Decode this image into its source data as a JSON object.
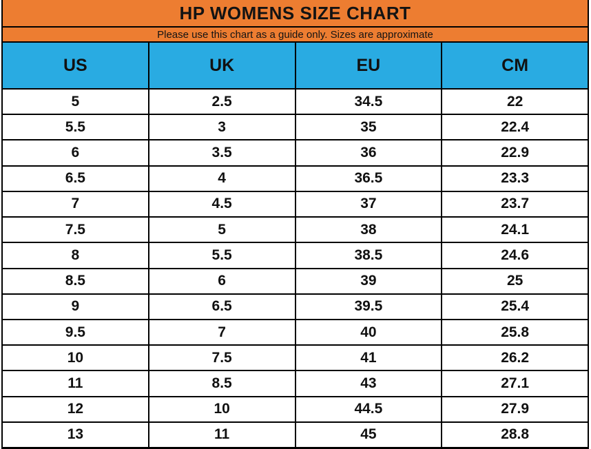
{
  "header": {
    "title": "HP WOMENS SIZE CHART",
    "subtitle": "Please use this chart as a guide only. Sizes are approximate"
  },
  "colors": {
    "title_band_orange": "#ED7D31",
    "column_header_blue": "#29ABE2",
    "grid_border": "#000000",
    "row_background": "#FFFFFF",
    "text": "#111111"
  },
  "chart_data": {
    "type": "table",
    "title": "HP WOMENS SIZE CHART",
    "subtitle": "Please use this chart as a guide only. Sizes are approximate",
    "columns": [
      "US",
      "UK",
      "EU",
      "CM"
    ],
    "rows": [
      [
        "5",
        "2.5",
        "34.5",
        "22"
      ],
      [
        "5.5",
        "3",
        "35",
        "22.4"
      ],
      [
        "6",
        "3.5",
        "36",
        "22.9"
      ],
      [
        "6.5",
        "4",
        "36.5",
        "23.3"
      ],
      [
        "7",
        "4.5",
        "37",
        "23.7"
      ],
      [
        "7.5",
        "5",
        "38",
        "24.1"
      ],
      [
        "8",
        "5.5",
        "38.5",
        "24.6"
      ],
      [
        "8.5",
        "6",
        "39",
        "25"
      ],
      [
        "9",
        "6.5",
        "39.5",
        "25.4"
      ],
      [
        "9.5",
        "7",
        "40",
        "25.8"
      ],
      [
        "10",
        "7.5",
        "41",
        "26.2"
      ],
      [
        "11",
        "8.5",
        "43",
        "27.1"
      ],
      [
        "12",
        "10",
        "44.5",
        "27.9"
      ],
      [
        "13",
        "11",
        "45",
        "28.8"
      ]
    ]
  }
}
